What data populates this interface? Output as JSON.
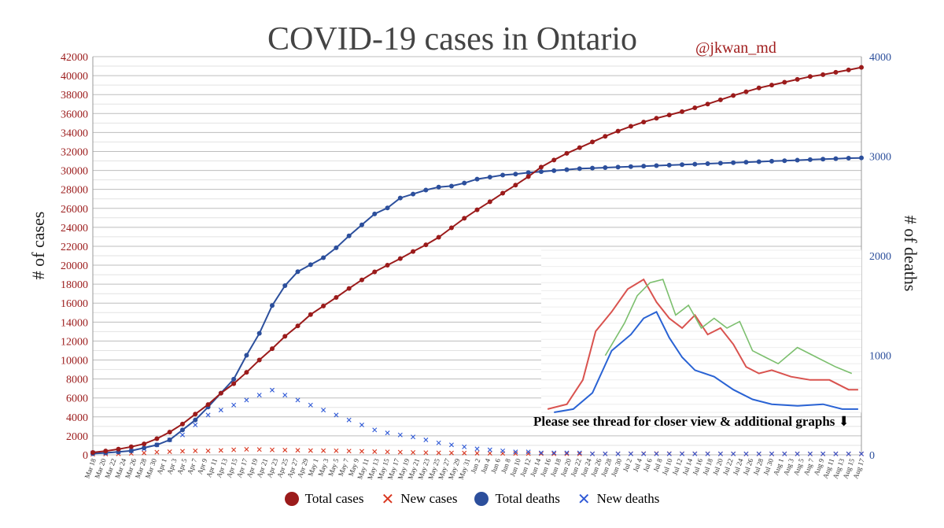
{
  "title": "COVID-19 cases in Ontario",
  "handle": "@jkwan_md",
  "inset_note": "Please see thread for closer view & additional graphs ⬇",
  "legend": {
    "total_cases": "Total cases",
    "new_cases": "New cases",
    "total_deaths": "Total deaths",
    "new_deaths": "New deaths"
  },
  "colors": {
    "cases": "#9b1b1b",
    "deaths": "#2c4f9c",
    "new_cases": "#d9361f",
    "new_deaths": "#2f59d6"
  },
  "chart_data": {
    "type": "line",
    "title": "COVID-19 cases in Ontario",
    "ylabel": "# of cases",
    "y2label": "# of deaths",
    "ylim": [
      0,
      42000
    ],
    "y2lim": [
      0,
      4000
    ],
    "yticks": [
      0,
      2000,
      4000,
      6000,
      8000,
      10000,
      12000,
      14000,
      16000,
      18000,
      20000,
      22000,
      24000,
      26000,
      28000,
      30000,
      32000,
      34000,
      36000,
      38000,
      40000,
      42000
    ],
    "y2ticks": [
      0,
      1000,
      2000,
      3000,
      4000
    ],
    "grid": true,
    "legend_position": "bottom",
    "x_tick_labels": [
      "Mar 18",
      "Mar 20",
      "Mar 22",
      "Mar 24",
      "Mar 26",
      "Mar 28",
      "Mar 30",
      "Apr 1",
      "Apr 3",
      "Apr 5",
      "Apr 7",
      "Apr 9",
      "Apr 11",
      "Apr 13",
      "Apr 15",
      "Apr 17",
      "Apr 19",
      "Apr 21",
      "Apr 23",
      "Apr 25",
      "Apr 27",
      "Apr 29",
      "May 1",
      "May 3",
      "May 5",
      "May 7",
      "May 9",
      "May 11",
      "May 13",
      "May 15",
      "May 17",
      "May 19",
      "May 21",
      "May 23",
      "May 25",
      "May 27",
      "May 29",
      "May 31",
      "Jun 2",
      "Jun 4",
      "Jun 6",
      "Jun 8",
      "Jun 10",
      "Jun 12",
      "Jun 14",
      "Jun 16",
      "Jun 18",
      "Jun 20",
      "Jun 22",
      "Jun 24",
      "Jun 26",
      "Jun 28",
      "Jun 30",
      "Jul 2",
      "Jul 4",
      "Jul 6",
      "Jul 8",
      "Jul 10",
      "Jul 12",
      "Jul 14",
      "Jul 16",
      "Jul 18",
      "Jul 20",
      "Jul 22",
      "Jul 24",
      "Jul 26",
      "Jul 28",
      "Jul 30",
      "Aug 1",
      "Aug 3",
      "Aug 5",
      "Aug 7",
      "Aug 9",
      "Aug 11",
      "Aug 13",
      "Aug 15",
      "Aug 17"
    ],
    "series": [
      {
        "name": "Total cases",
        "axis": "left",
        "values": [
          250,
          400,
          600,
          850,
          1150,
          1700,
          2400,
          3250,
          4300,
          5300,
          6500,
          7500,
          8700,
          10000,
          11200,
          12500,
          13600,
          14800,
          15700,
          16600,
          17550,
          18450,
          19300,
          20000,
          20700,
          21450,
          22150,
          22950,
          23950,
          24950,
          25850,
          26700,
          27600,
          28450,
          29350,
          30350,
          31100,
          31800,
          32400,
          33000,
          33600,
          34150,
          34650,
          35100,
          35500,
          35850,
          36200,
          36600,
          37000,
          37450,
          37900,
          38300,
          38700,
          39000,
          39300,
          39600,
          39900,
          40100,
          40350,
          40600,
          40870
        ]
      },
      {
        "name": "Total deaths",
        "axis": "right",
        "values": [
          12,
          20,
          30,
          40,
          70,
          100,
          150,
          250,
          350,
          480,
          620,
          760,
          1000,
          1220,
          1500,
          1700,
          1840,
          1910,
          1980,
          2080,
          2200,
          2310,
          2420,
          2480,
          2580,
          2620,
          2660,
          2690,
          2700,
          2730,
          2770,
          2790,
          2810,
          2820,
          2835,
          2845,
          2855,
          2865,
          2875,
          2880,
          2885,
          2890,
          2895,
          2900,
          2905,
          2910,
          2915,
          2920,
          2925,
          2930,
          2935,
          2940,
          2945,
          2950,
          2955,
          2960,
          2965,
          2970,
          2975,
          2980,
          2983
        ]
      }
    ],
    "new_cases_approx": [
      60,
      80,
      100,
      150,
      200,
      280,
      330,
      380,
      420,
      420,
      470,
      530,
      580,
      560,
      520,
      500,
      480,
      450,
      440,
      430,
      400,
      370,
      340,
      310,
      280,
      250,
      230,
      210,
      200,
      190,
      170,
      160,
      150,
      140,
      130,
      120,
      110,
      110,
      100,
      100,
      100,
      110,
      120,
      130,
      140,
      130,
      120,
      120,
      110,
      100,
      100,
      95,
      90,
      95,
      100,
      100,
      90,
      95,
      100,
      90,
      90
    ],
    "new_deaths_approx": [
      2,
      2,
      3,
      4,
      6,
      10,
      15,
      20,
      30,
      40,
      45,
      50,
      55,
      60,
      65,
      60,
      55,
      50,
      45,
      40,
      35,
      30,
      25,
      22,
      20,
      18,
      15,
      12,
      10,
      8,
      6,
      5,
      4,
      3,
      3,
      2,
      2,
      2,
      2,
      1,
      1,
      1,
      1,
      1,
      1,
      1,
      1,
      1,
      1,
      1,
      1,
      1,
      1,
      1,
      1,
      1,
      1,
      1,
      1,
      1,
      1
    ]
  }
}
